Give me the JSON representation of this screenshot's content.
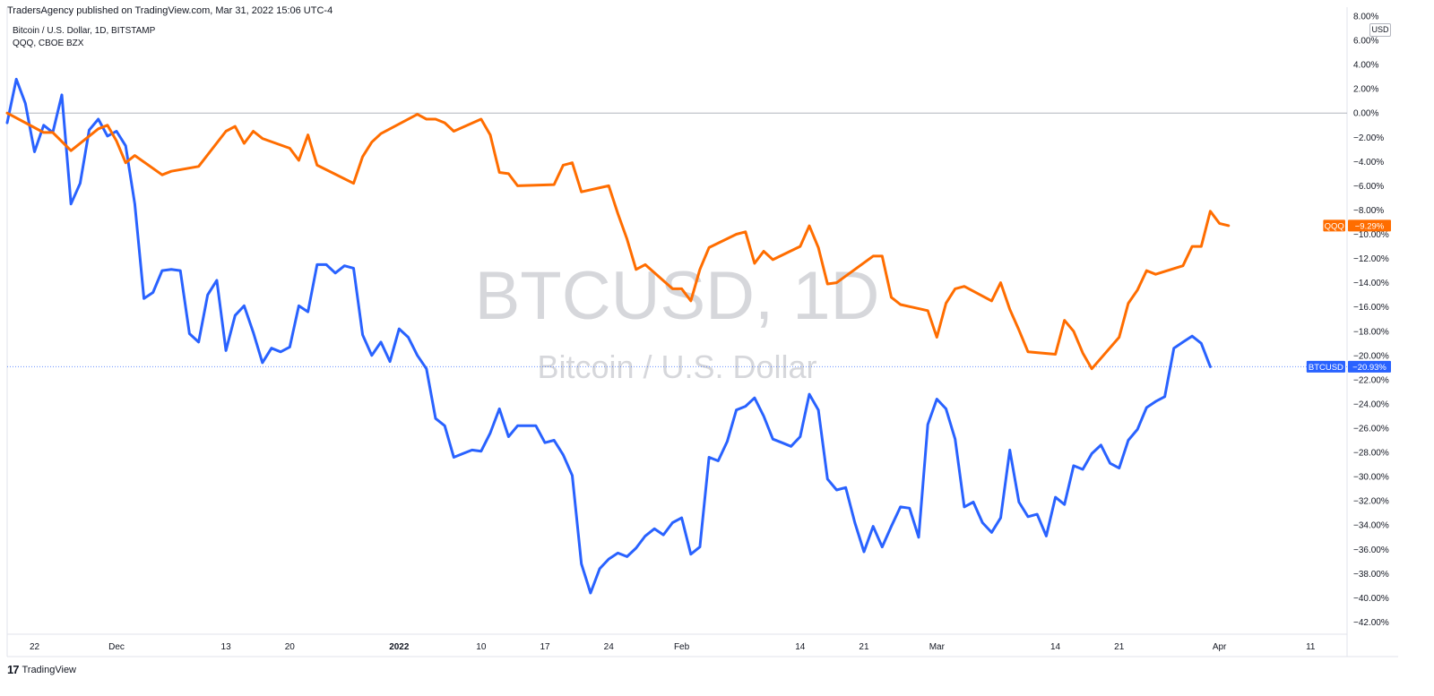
{
  "publisher": "TradersAgency published on TradingView.com, Mar 31, 2022 15:06 UTC-4",
  "footer": {
    "brand": "TradingView"
  },
  "legend": {
    "line1": "Bitcoin / U.S. Dollar, 1D, BITSTAMP",
    "line2": "QQQ, CBOE BZX"
  },
  "watermark": {
    "main": "BTCUSD, 1D",
    "sub": "Bitcoin / U.S. Dollar"
  },
  "currency": "USD",
  "colors": {
    "btc": "#2962ff",
    "qqq": "#ff6d00",
    "axis_text": "#131722",
    "watermark": "#d6d7db",
    "grid_zero": "#b2b5be",
    "border": "#e0e3eb"
  },
  "chart_data": {
    "type": "line",
    "title": "",
    "xlabel": "",
    "ylabel": "",
    "y_unit": "%",
    "ylim": [
      -43,
      8
    ],
    "y_ticks": [
      8,
      6,
      4,
      2,
      0,
      -2,
      -4,
      -6,
      -8,
      -10,
      -12,
      -14,
      -16,
      -18,
      -20,
      -22,
      -24,
      -26,
      -28,
      -30,
      -32,
      -34,
      -36,
      -38,
      -40,
      -42
    ],
    "y_tick_labels": [
      "8.00%",
      "6.00%",
      "4.00%",
      "2.00%",
      "0.00%",
      "−2.00%",
      "−4.00%",
      "−6.00%",
      "−8.00%",
      "−10.00%",
      "−12.00%",
      "−14.00%",
      "−16.00%",
      "−18.00%",
      "−20.00%",
      "−22.00%",
      "−24.00%",
      "−26.00%",
      "−28.00%",
      "−30.00%",
      "−32.00%",
      "−34.00%",
      "−36.00%",
      "−38.00%",
      "−40.00%",
      "−42.00%"
    ],
    "xlim": [
      "2021-11-19",
      "2022-04-15"
    ],
    "x_ticks": [
      {
        "date": "2021-11-22",
        "label": "22",
        "bold": false
      },
      {
        "date": "2021-12-01",
        "label": "Dec",
        "bold": false
      },
      {
        "date": "2021-12-13",
        "label": "13",
        "bold": false
      },
      {
        "date": "2021-12-20",
        "label": "20",
        "bold": false
      },
      {
        "date": "2022-01-01",
        "label": "2022",
        "bold": true
      },
      {
        "date": "2022-01-10",
        "label": "10",
        "bold": false
      },
      {
        "date": "2022-01-17",
        "label": "17",
        "bold": false
      },
      {
        "date": "2022-01-24",
        "label": "24",
        "bold": false
      },
      {
        "date": "2022-02-01",
        "label": "Feb",
        "bold": false
      },
      {
        "date": "2022-02-14",
        "label": "14",
        "bold": false
      },
      {
        "date": "2022-02-21",
        "label": "21",
        "bold": false
      },
      {
        "date": "2022-03-01",
        "label": "Mar",
        "bold": false
      },
      {
        "date": "2022-03-14",
        "label": "14",
        "bold": false
      },
      {
        "date": "2022-03-21",
        "label": "21",
        "bold": false
      },
      {
        "date": "2022-04-01",
        "label": "Apr",
        "bold": false
      },
      {
        "date": "2022-04-11",
        "label": "11",
        "bold": false
      }
    ],
    "series": [
      {
        "name": "BTCUSD",
        "color": "#2962ff",
        "last_label": "−20.93%",
        "last_value": -20.93,
        "points": [
          [
            "2021-11-19",
            -0.8
          ],
          [
            "2021-11-20",
            2.8
          ],
          [
            "2021-11-21",
            0.8
          ],
          [
            "2021-11-22",
            -3.2
          ],
          [
            "2021-11-23",
            -1.0
          ],
          [
            "2021-11-24",
            -1.6
          ],
          [
            "2021-11-25",
            1.5
          ],
          [
            "2021-11-26",
            -7.5
          ],
          [
            "2021-11-27",
            -5.8
          ],
          [
            "2021-11-28",
            -1.4
          ],
          [
            "2021-11-29",
            -0.5
          ],
          [
            "2021-11-30",
            -1.9
          ],
          [
            "2021-12-01",
            -1.5
          ],
          [
            "2021-12-02",
            -2.7
          ],
          [
            "2021-12-03",
            -7.5
          ],
          [
            "2021-12-04",
            -15.3
          ],
          [
            "2021-12-05",
            -14.8
          ],
          [
            "2021-12-06",
            -13.0
          ],
          [
            "2021-12-07",
            -12.9
          ],
          [
            "2021-12-08",
            -13.0
          ],
          [
            "2021-12-09",
            -18.2
          ],
          [
            "2021-12-10",
            -18.9
          ],
          [
            "2021-12-11",
            -15.0
          ],
          [
            "2021-12-12",
            -13.8
          ],
          [
            "2021-12-13",
            -19.6
          ],
          [
            "2021-12-14",
            -16.7
          ],
          [
            "2021-12-15",
            -15.9
          ],
          [
            "2021-12-16",
            -18.1
          ],
          [
            "2021-12-17",
            -20.6
          ],
          [
            "2021-12-18",
            -19.4
          ],
          [
            "2021-12-19",
            -19.7
          ],
          [
            "2021-12-20",
            -19.3
          ],
          [
            "2021-12-21",
            -15.9
          ],
          [
            "2021-12-22",
            -16.4
          ],
          [
            "2021-12-23",
            -12.5
          ],
          [
            "2021-12-24",
            -12.5
          ],
          [
            "2021-12-25",
            -13.2
          ],
          [
            "2021-12-26",
            -12.6
          ],
          [
            "2021-12-27",
            -12.8
          ],
          [
            "2021-12-28",
            -18.3
          ],
          [
            "2021-12-29",
            -20.0
          ],
          [
            "2021-12-30",
            -18.9
          ],
          [
            "2021-12-31",
            -20.5
          ],
          [
            "2022-01-01",
            -17.8
          ],
          [
            "2022-01-02",
            -18.5
          ],
          [
            "2022-01-03",
            -20.0
          ],
          [
            "2022-01-04",
            -21.1
          ],
          [
            "2022-01-05",
            -25.2
          ],
          [
            "2022-01-06",
            -25.8
          ],
          [
            "2022-01-07",
            -28.4
          ],
          [
            "2022-01-08",
            -28.1
          ],
          [
            "2022-01-09",
            -27.8
          ],
          [
            "2022-01-10",
            -27.9
          ],
          [
            "2022-01-11",
            -26.4
          ],
          [
            "2022-01-12",
            -24.4
          ],
          [
            "2022-01-13",
            -26.7
          ],
          [
            "2022-01-14",
            -25.8
          ],
          [
            "2022-01-15",
            -25.8
          ],
          [
            "2022-01-16",
            -25.8
          ],
          [
            "2022-01-17",
            -27.2
          ],
          [
            "2022-01-18",
            -27.0
          ],
          [
            "2022-01-19",
            -28.2
          ],
          [
            "2022-01-20",
            -29.9
          ],
          [
            "2022-01-21",
            -37.2
          ],
          [
            "2022-01-22",
            -39.6
          ],
          [
            "2022-01-23",
            -37.6
          ],
          [
            "2022-01-24",
            -36.8
          ],
          [
            "2022-01-25",
            -36.3
          ],
          [
            "2022-01-26",
            -36.6
          ],
          [
            "2022-01-27",
            -35.9
          ],
          [
            "2022-01-28",
            -34.9
          ],
          [
            "2022-01-29",
            -34.3
          ],
          [
            "2022-01-30",
            -34.8
          ],
          [
            "2022-01-31",
            -33.8
          ],
          [
            "2022-02-01",
            -33.4
          ],
          [
            "2022-02-02",
            -36.4
          ],
          [
            "2022-02-03",
            -35.8
          ],
          [
            "2022-02-04",
            -28.4
          ],
          [
            "2022-02-05",
            -28.7
          ],
          [
            "2022-02-06",
            -27.1
          ],
          [
            "2022-02-07",
            -24.5
          ],
          [
            "2022-02-08",
            -24.2
          ],
          [
            "2022-02-09",
            -23.5
          ],
          [
            "2022-02-10",
            -25.0
          ],
          [
            "2022-02-11",
            -26.9
          ],
          [
            "2022-02-12",
            -27.2
          ],
          [
            "2022-02-13",
            -27.5
          ],
          [
            "2022-02-14",
            -26.7
          ],
          [
            "2022-02-15",
            -23.2
          ],
          [
            "2022-02-16",
            -24.5
          ],
          [
            "2022-02-17",
            -30.2
          ],
          [
            "2022-02-18",
            -31.1
          ],
          [
            "2022-02-19",
            -30.9
          ],
          [
            "2022-02-20",
            -33.8
          ],
          [
            "2022-02-21",
            -36.2
          ],
          [
            "2022-02-22",
            -34.1
          ],
          [
            "2022-02-23",
            -35.8
          ],
          [
            "2022-02-24",
            -34.1
          ],
          [
            "2022-02-25",
            -32.5
          ],
          [
            "2022-02-26",
            -32.6
          ],
          [
            "2022-02-27",
            -35.0
          ],
          [
            "2022-02-28",
            -25.7
          ],
          [
            "2022-03-01",
            -23.6
          ],
          [
            "2022-03-02",
            -24.4
          ],
          [
            "2022-03-03",
            -26.9
          ],
          [
            "2022-03-04",
            -32.5
          ],
          [
            "2022-03-05",
            -32.1
          ],
          [
            "2022-03-06",
            -33.8
          ],
          [
            "2022-03-07",
            -34.6
          ],
          [
            "2022-03-08",
            -33.4
          ],
          [
            "2022-03-09",
            -27.8
          ],
          [
            "2022-03-10",
            -32.1
          ],
          [
            "2022-03-11",
            -33.3
          ],
          [
            "2022-03-12",
            -33.1
          ],
          [
            "2022-03-13",
            -34.9
          ],
          [
            "2022-03-14",
            -31.7
          ],
          [
            "2022-03-15",
            -32.3
          ],
          [
            "2022-03-16",
            -29.1
          ],
          [
            "2022-03-17",
            -29.4
          ],
          [
            "2022-03-18",
            -28.1
          ],
          [
            "2022-03-19",
            -27.4
          ],
          [
            "2022-03-20",
            -28.9
          ],
          [
            "2022-03-21",
            -29.3
          ],
          [
            "2022-03-22",
            -27.0
          ],
          [
            "2022-03-23",
            -26.1
          ],
          [
            "2022-03-24",
            -24.3
          ],
          [
            "2022-03-25",
            -23.8
          ],
          [
            "2022-03-26",
            -23.4
          ],
          [
            "2022-03-27",
            -19.4
          ],
          [
            "2022-03-28",
            -18.9
          ],
          [
            "2022-03-29",
            -18.4
          ],
          [
            "2022-03-30",
            -19.0
          ],
          [
            "2022-03-31",
            -20.93
          ]
        ]
      },
      {
        "name": "QQQ",
        "color": "#ff6d00",
        "last_label": "−9.29%",
        "last_value": -9.29,
        "points": [
          [
            "2021-11-19",
            0.0
          ],
          [
            "2021-11-22",
            -1.2
          ],
          [
            "2021-11-23",
            -1.6
          ],
          [
            "2021-11-24",
            -1.6
          ],
          [
            "2021-11-26",
            -3.1
          ],
          [
            "2021-11-29",
            -1.3
          ],
          [
            "2021-11-30",
            -1.0
          ],
          [
            "2021-12-01",
            -2.3
          ],
          [
            "2021-12-02",
            -4.1
          ],
          [
            "2021-12-03",
            -3.5
          ],
          [
            "2021-12-06",
            -5.1
          ],
          [
            "2021-12-07",
            -4.8
          ],
          [
            "2021-12-10",
            -4.4
          ],
          [
            "2021-12-13",
            -1.5
          ],
          [
            "2021-12-14",
            -1.1
          ],
          [
            "2021-12-15",
            -2.5
          ],
          [
            "2021-12-16",
            -1.5
          ],
          [
            "2021-12-17",
            -2.1
          ],
          [
            "2021-12-20",
            -2.9
          ],
          [
            "2021-12-21",
            -3.9
          ],
          [
            "2021-12-22",
            -1.8
          ],
          [
            "2021-12-23",
            -4.3
          ],
          [
            "2021-12-27",
            -5.8
          ],
          [
            "2021-12-28",
            -3.6
          ],
          [
            "2021-12-29",
            -2.4
          ],
          [
            "2021-12-30",
            -1.7
          ],
          [
            "2022-01-03",
            -0.1
          ],
          [
            "2022-01-04",
            -0.5
          ],
          [
            "2022-01-05",
            -0.5
          ],
          [
            "2022-01-06",
            -0.8
          ],
          [
            "2022-01-07",
            -1.5
          ],
          [
            "2022-01-10",
            -0.5
          ],
          [
            "2022-01-11",
            -1.8
          ],
          [
            "2022-01-12",
            -4.9
          ],
          [
            "2022-01-13",
            -5.0
          ],
          [
            "2022-01-14",
            -6.0
          ],
          [
            "2022-01-18",
            -5.9
          ],
          [
            "2022-01-19",
            -4.3
          ],
          [
            "2022-01-20",
            -4.1
          ],
          [
            "2022-01-21",
            -6.5
          ],
          [
            "2022-01-24",
            -6.0
          ],
          [
            "2022-01-25",
            -8.3
          ],
          [
            "2022-01-26",
            -10.4
          ],
          [
            "2022-01-27",
            -12.9
          ],
          [
            "2022-01-28",
            -12.5
          ],
          [
            "2022-01-31",
            -14.5
          ],
          [
            "2022-02-01",
            -14.5
          ],
          [
            "2022-02-02",
            -15.5
          ],
          [
            "2022-02-03",
            -12.9
          ],
          [
            "2022-02-04",
            -11.1
          ],
          [
            "2022-02-07",
            -10.0
          ],
          [
            "2022-02-08",
            -9.8
          ],
          [
            "2022-02-09",
            -12.4
          ],
          [
            "2022-02-10",
            -11.4
          ],
          [
            "2022-02-11",
            -12.1
          ],
          [
            "2022-02-14",
            -11.0
          ],
          [
            "2022-02-15",
            -9.3
          ],
          [
            "2022-02-16",
            -11.1
          ],
          [
            "2022-02-17",
            -14.1
          ],
          [
            "2022-02-18",
            -14.0
          ],
          [
            "2022-02-22",
            -11.8
          ],
          [
            "2022-02-23",
            -11.8
          ],
          [
            "2022-02-24",
            -15.2
          ],
          [
            "2022-02-25",
            -15.8
          ],
          [
            "2022-02-28",
            -16.3
          ],
          [
            "2022-03-01",
            -18.5
          ],
          [
            "2022-03-02",
            -15.7
          ],
          [
            "2022-03-03",
            -14.5
          ],
          [
            "2022-03-04",
            -14.3
          ],
          [
            "2022-03-07",
            -15.5
          ],
          [
            "2022-03-08",
            -14.0
          ],
          [
            "2022-03-09",
            -16.2
          ],
          [
            "2022-03-10",
            -17.9
          ],
          [
            "2022-03-11",
            -19.7
          ],
          [
            "2022-03-14",
            -19.9
          ],
          [
            "2022-03-15",
            -17.1
          ],
          [
            "2022-03-16",
            -18.0
          ],
          [
            "2022-03-17",
            -19.8
          ],
          [
            "2022-03-18",
            -21.1
          ],
          [
            "2022-03-21",
            -18.5
          ],
          [
            "2022-03-22",
            -15.7
          ],
          [
            "2022-03-23",
            -14.6
          ],
          [
            "2022-03-24",
            -13.0
          ],
          [
            "2022-03-25",
            -13.3
          ],
          [
            "2022-03-28",
            -12.6
          ],
          [
            "2022-03-29",
            -11.0
          ],
          [
            "2022-03-30",
            -11.0
          ],
          [
            "2022-03-31",
            -8.1
          ],
          [
            "2022-04-01",
            -9.1
          ],
          [
            "2022-04-02",
            -9.29
          ]
        ]
      }
    ]
  }
}
